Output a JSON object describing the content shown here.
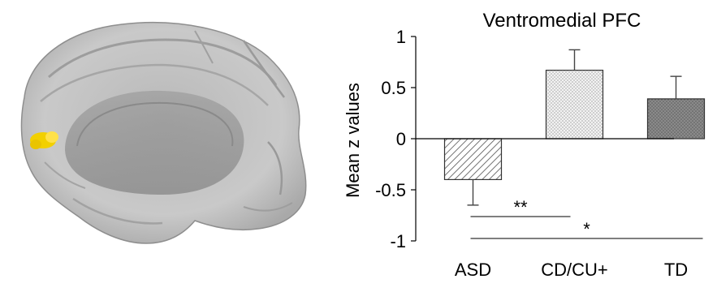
{
  "brain_panel": {
    "image": "brain-medial-surface",
    "highlight_color": "#f2d000",
    "surface_color": "#c8c8c8"
  },
  "chart_data": {
    "type": "bar",
    "title": "Ventromedial PFC",
    "ylabel": "Mean z values",
    "xlabel": "",
    "ylim": [
      -1,
      1
    ],
    "yticks": [
      1,
      0.5,
      0,
      -0.5,
      -1
    ],
    "ytick_labels": [
      "1",
      "0.5",
      "0",
      "-0.5",
      "-1"
    ],
    "categories": [
      "ASD",
      "CD/CU+",
      "TD"
    ],
    "values": [
      -0.4,
      0.67,
      0.39
    ],
    "errors": [
      0.25,
      0.2,
      0.22
    ],
    "bar_patterns": [
      "diagonal-hatch",
      "light-dots",
      "dark-dots"
    ],
    "significance": [
      {
        "from": "ASD",
        "to": "CD/CU+",
        "label": "**"
      },
      {
        "from": "ASD",
        "to": "TD",
        "label": "*"
      }
    ],
    "grid": false
  }
}
